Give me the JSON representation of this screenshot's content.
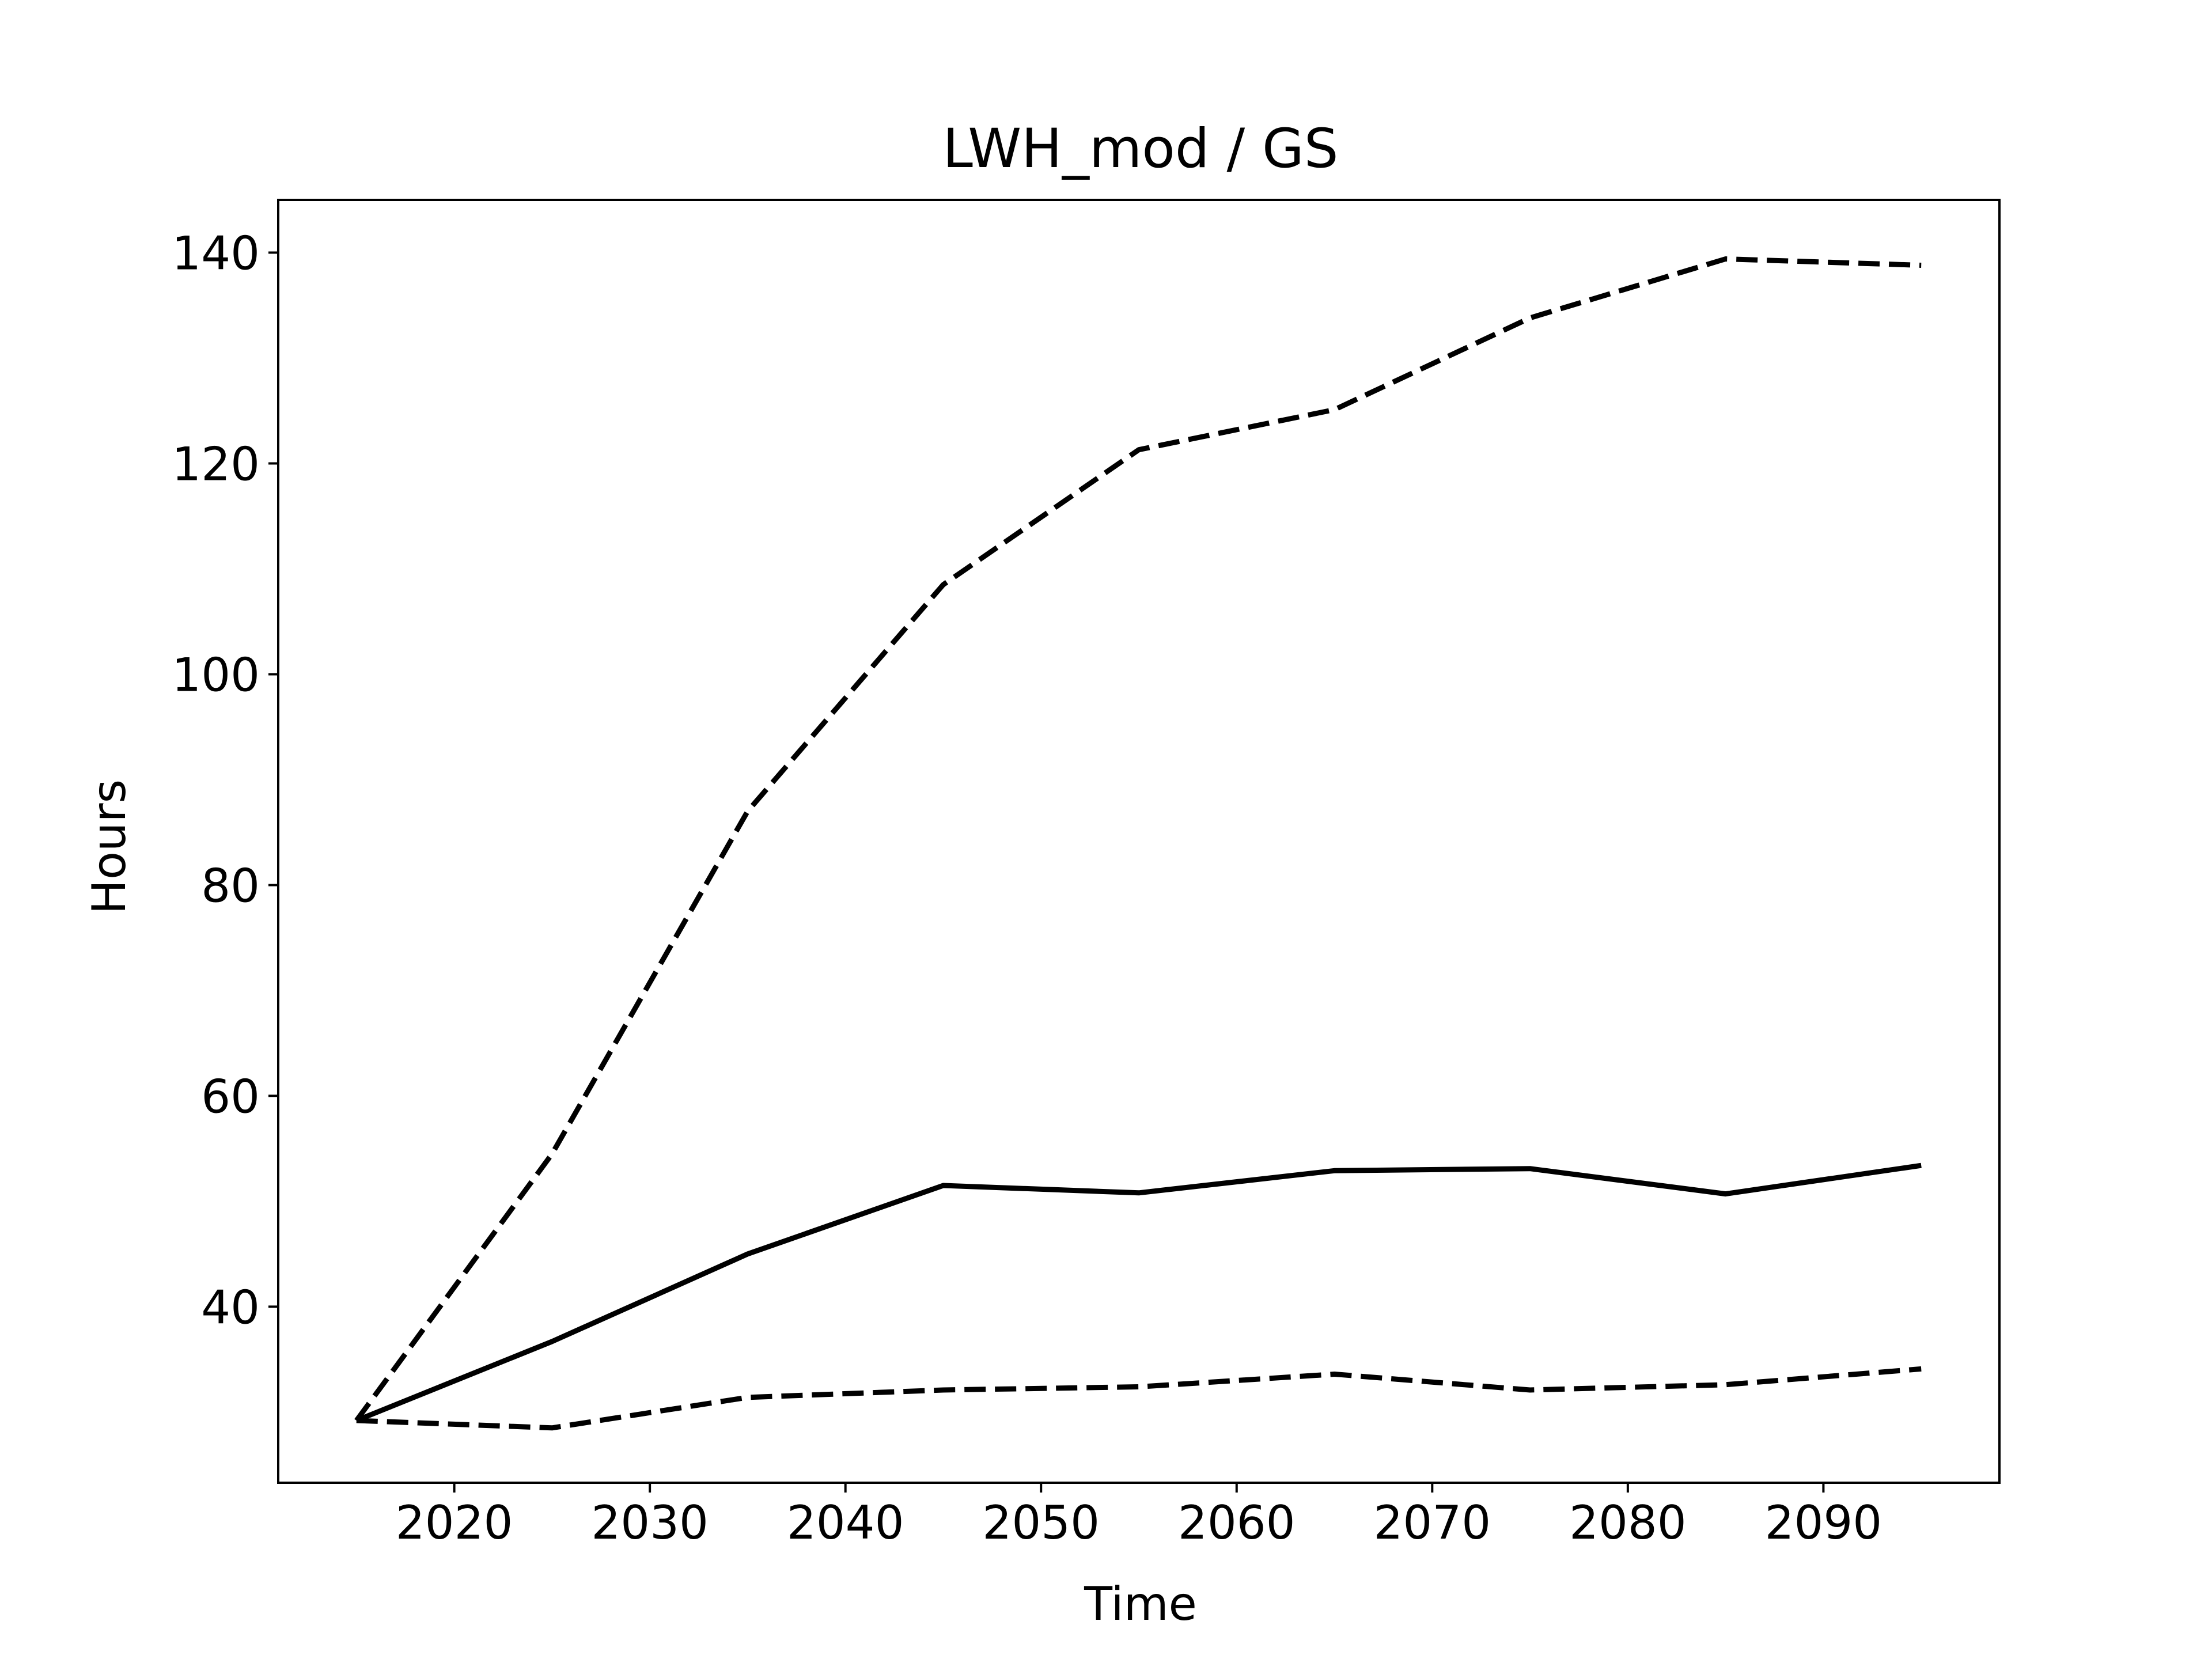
{
  "chart_data": {
    "type": "line",
    "title": "LWH_mod / GS",
    "xlabel": "Time",
    "ylabel": "Hours",
    "xlim": [
      2011,
      2099
    ],
    "ylim": [
      23.3,
      145
    ],
    "xticks": [
      2020,
      2030,
      2040,
      2050,
      2060,
      2070,
      2080,
      2090
    ],
    "yticks": [
      40,
      60,
      80,
      100,
      120,
      140
    ],
    "grid": false,
    "legend": "none",
    "x": [
      2015,
      2025,
      2035,
      2045,
      2055,
      2065,
      2075,
      2085,
      2095
    ],
    "series": [
      {
        "style": "solid",
        "color": "#000000",
        "values": [
          29.2,
          36.7,
          45.0,
          51.5,
          50.8,
          52.9,
          53.1,
          50.7,
          53.4
        ]
      },
      {
        "style": "dashed",
        "color": "#000000",
        "values": [
          29.2,
          54.5,
          87.0,
          108.5,
          121.3,
          125.1,
          133.8,
          139.4,
          138.8
        ]
      },
      {
        "style": "dashed",
        "color": "#000000",
        "values": [
          29.2,
          28.5,
          31.4,
          32.1,
          32.4,
          33.6,
          32.1,
          32.6,
          34.1
        ]
      }
    ]
  }
}
